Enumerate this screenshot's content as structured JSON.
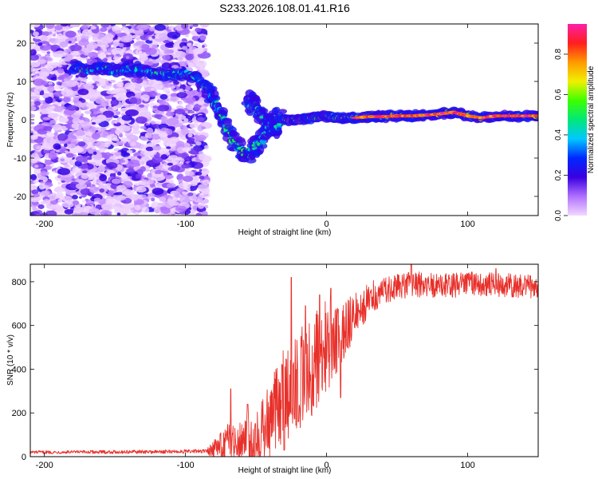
{
  "figure": {
    "title": "S233.2026.108.01.41.R16"
  },
  "chart_data": [
    {
      "type": "heatmap",
      "name": "spectrogram",
      "title": "S233.2026.108.01.41.R16",
      "xlabel": "Height of straight line (km)",
      "ylabel": "Frequency (Hz)",
      "xlim": [
        -210,
        150
      ],
      "ylim": [
        -25,
        25
      ],
      "xticks": [
        -200,
        -100,
        0,
        100
      ],
      "xtick_labels": [
        "-200",
        "-100",
        "0",
        "100"
      ],
      "yticks": [
        -20,
        -10,
        0,
        10,
        20
      ],
      "ytick_labels": [
        "-20",
        "-10",
        "0",
        "10",
        "20"
      ],
      "colorbar": {
        "label": "Normalized spectral amplitude",
        "range": [
          0,
          0.95
        ],
        "ticks": [
          0.0,
          0.2,
          0.4,
          0.6,
          0.8
        ],
        "tick_labels": [
          "0.0",
          "0.2",
          "0.4",
          "0.6",
          "0.8"
        ],
        "colors": [
          "#f2d8ff",
          "#b070ff",
          "#3a00e0",
          "#0028ff",
          "#00c8ff",
          "#00e878",
          "#3cff00",
          "#f0f000",
          "#ff9a00",
          "#ff1e1e",
          "#ff1ea8"
        ]
      },
      "noise_region_x": [
        -210,
        -85
      ],
      "noise_region_y": [
        -25,
        25
      ],
      "ridge": [
        {
          "x": -180,
          "y": 14.0
        },
        {
          "x": -170,
          "y": 12.5
        },
        {
          "x": -160,
          "y": 14.0
        },
        {
          "x": -150,
          "y": 12.5
        },
        {
          "x": -140,
          "y": 13.5
        },
        {
          "x": -130,
          "y": 13.0
        },
        {
          "x": -120,
          "y": 12.0
        },
        {
          "x": -110,
          "y": 11.5
        },
        {
          "x": -100,
          "y": 12.0
        },
        {
          "x": -92,
          "y": 11.0
        },
        {
          "x": -85,
          "y": 8.0
        },
        {
          "x": -80,
          "y": 5.0
        },
        {
          "x": -75,
          "y": 1.5
        },
        {
          "x": -70,
          "y": -3.0
        },
        {
          "x": -65,
          "y": -6.0
        },
        {
          "x": -60,
          "y": -8.0
        },
        {
          "x": -55,
          "y": -9.0
        },
        {
          "x": -50,
          "y": -7.0
        },
        {
          "x": -45,
          "y": -5.0
        },
        {
          "x": -40,
          "y": -1.5
        },
        {
          "x": -35,
          "y": 0.5
        },
        {
          "x": -30,
          "y": 0.0
        },
        {
          "x": -20,
          "y": 0.0
        },
        {
          "x": -10,
          "y": 0.5
        },
        {
          "x": 0,
          "y": 1.0
        },
        {
          "x": 10,
          "y": 0.5
        },
        {
          "x": 20,
          "y": 0.5
        },
        {
          "x": 30,
          "y": 0.8
        },
        {
          "x": 40,
          "y": 0.8
        },
        {
          "x": 50,
          "y": 1.0
        },
        {
          "x": 60,
          "y": 1.0
        },
        {
          "x": 70,
          "y": 1.2
        },
        {
          "x": 80,
          "y": 1.5
        },
        {
          "x": 90,
          "y": 2.0
        },
        {
          "x": 100,
          "y": 1.0
        },
        {
          "x": 110,
          "y": 0.5
        },
        {
          "x": 120,
          "y": 1.0
        },
        {
          "x": 130,
          "y": 1.0
        },
        {
          "x": 140,
          "y": 1.0
        },
        {
          "x": 150,
          "y": 1.0
        }
      ],
      "side_branch": [
        {
          "x": -57,
          "y": 5.0
        },
        {
          "x": -52,
          "y": 4.0
        },
        {
          "x": -47,
          "y": 1.0
        },
        {
          "x": -42,
          "y": -1.0
        },
        {
          "x": -38,
          "y": -3.0
        },
        {
          "x": -33,
          "y": -1.0
        }
      ],
      "hot_segments": [
        {
          "x0": 20,
          "x1": 150,
          "y": 0.8
        }
      ]
    },
    {
      "type": "line",
      "name": "snr",
      "title": "",
      "xlabel": "Height of straight line (km)",
      "ylabel": "SNR (10 * v/v)",
      "xlim": [
        -210,
        150
      ],
      "ylim": [
        0,
        880
      ],
      "xticks": [
        -200,
        -100,
        0,
        100
      ],
      "xtick_labels": [
        "-200",
        "-100",
        "0",
        "100"
      ],
      "yticks": [
        0,
        200,
        400,
        600,
        800
      ],
      "ytick_labels": [
        "0",
        "200",
        "400",
        "600",
        "800"
      ],
      "color": "#e8302a",
      "trend": {
        "x": [
          -210,
          -120,
          -85,
          -70,
          -60,
          -50,
          -40,
          -30,
          -20,
          -10,
          0,
          10,
          20,
          30,
          40,
          60,
          80,
          100,
          150
        ],
        "y": [
          20,
          22,
          25,
          60,
          90,
          80,
          170,
          280,
          360,
          420,
          500,
          560,
          650,
          720,
          760,
          790,
          780,
          790,
          780
        ]
      },
      "noise_amplitude": {
        "x": [
          -210,
          -85,
          -70,
          -50,
          -40,
          -20,
          0,
          20,
          40,
          150
        ],
        "y": [
          12,
          15,
          90,
          120,
          190,
          240,
          220,
          100,
          60,
          55
        ]
      },
      "peaks": [
        {
          "x": -68,
          "y": 310
        },
        {
          "x": -56,
          "y": 240
        },
        {
          "x": -25,
          "y": 820
        },
        {
          "x": -15,
          "y": 690
        },
        {
          "x": -5,
          "y": 740
        },
        {
          "x": 3,
          "y": 770
        },
        {
          "x": 60,
          "y": 880
        },
        {
          "x": 120,
          "y": 860
        }
      ],
      "troughs": [
        {
          "x": -30,
          "y": 30
        },
        {
          "x": -20,
          "y": 160
        },
        {
          "x": 10,
          "y": 270
        }
      ]
    }
  ]
}
